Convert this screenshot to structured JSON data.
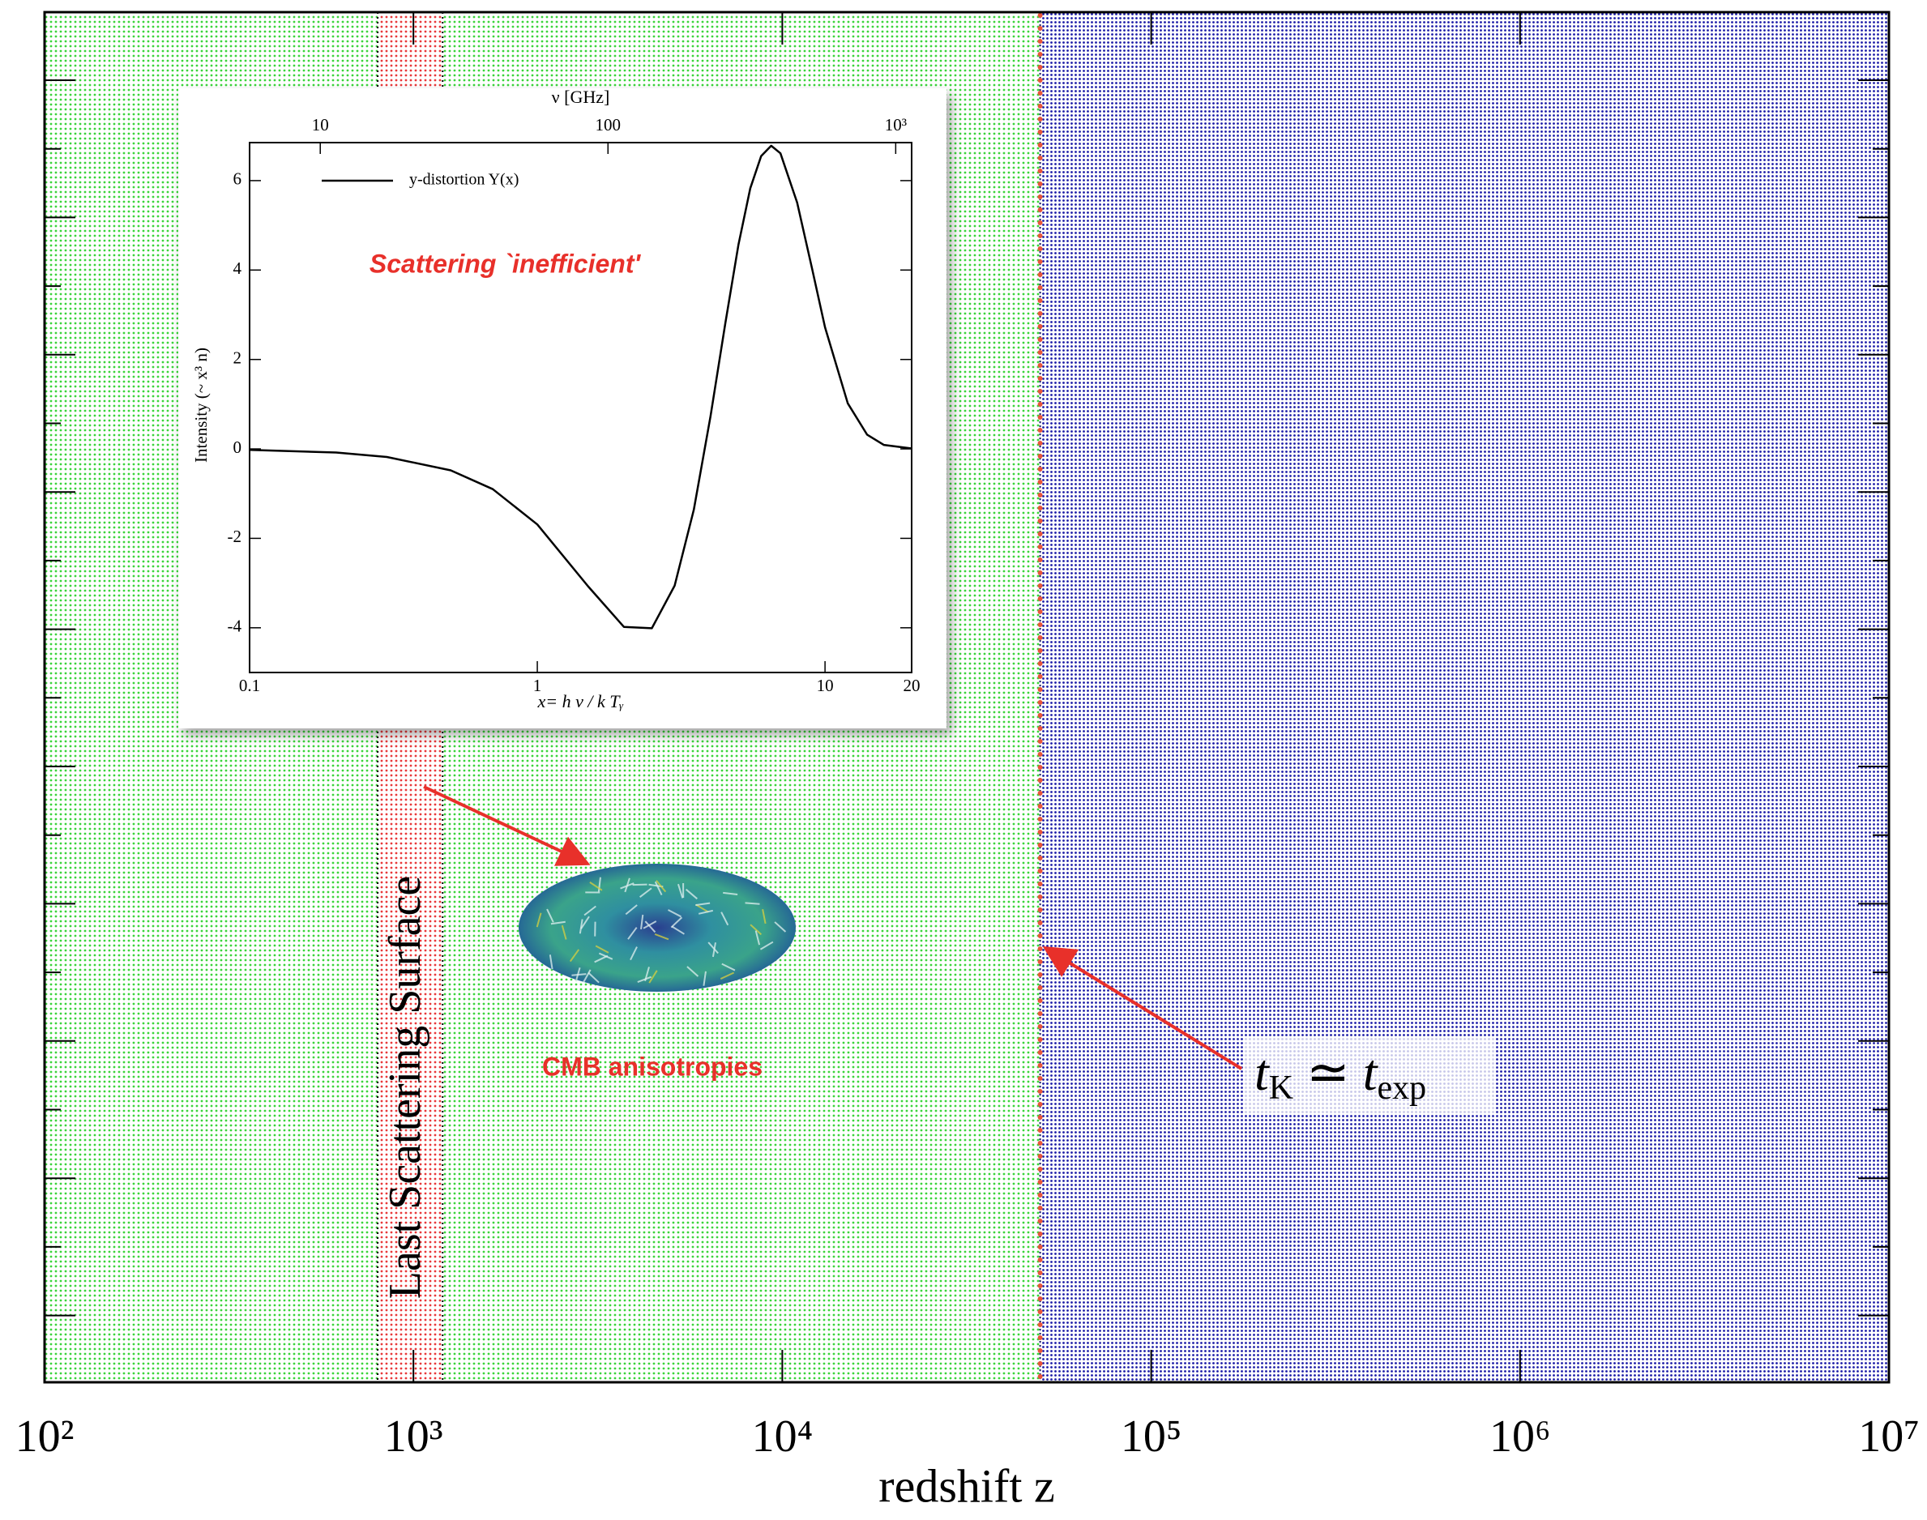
{
  "chart_data": [
    {
      "type": "regions",
      "xlabel": "redshift z",
      "xscale": "log",
      "xlim": [
        100,
        10000000
      ],
      "xticks": [
        {
          "value": 100,
          "label": "10²"
        },
        {
          "value": 1000,
          "label": "10³"
        },
        {
          "value": 10000,
          "label": "10⁴"
        },
        {
          "value": 100000,
          "label": "10⁵"
        },
        {
          "value": 1000000,
          "label": "10⁶"
        },
        {
          "value": 10000000,
          "label": "10⁷"
        }
      ],
      "regions": [
        {
          "x": [
            100,
            50000
          ],
          "color": "#3ad43a"
        },
        {
          "x": [
            50000,
            10000000
          ],
          "color": "#1c1ca8"
        },
        {
          "x": [
            800,
            1200
          ],
          "color": "#e8383a"
        }
      ],
      "vlines": [
        {
          "x": 50000,
          "color": "#e8553a"
        }
      ],
      "annotations": [
        {
          "text": "Last Scattering Surface"
        },
        {
          "text": "CMB anisotropies"
        },
        {
          "parts": [
            "t",
            "K",
            " ≃ ",
            "t",
            "exp"
          ]
        }
      ]
    },
    {
      "type": "line",
      "x2label": "ν  [GHz]",
      "xlabel": "x= h ν / k Tᵧ",
      "ylabel": "Intensity (~ x³ n)",
      "xscale": "log",
      "xlim": [
        0.1,
        20
      ],
      "xticks": [
        0.1,
        1,
        10,
        20
      ],
      "x2lim": [
        5.68,
        1136
      ],
      "x2ticks": [
        10,
        100,
        {
          "value": 1000,
          "label": "10³"
        }
      ],
      "ylim": [
        -5,
        6.85
      ],
      "yticks": [
        -4,
        -2,
        0,
        2,
        4,
        6
      ],
      "annotation": "Scattering `inefficient'",
      "x": [
        0.1,
        0.2,
        0.3,
        0.5,
        0.7,
        1,
        1.5,
        2,
        2.5,
        3,
        3.5,
        4,
        4.5,
        5,
        5.5,
        6,
        6.5,
        7,
        8,
        9,
        10,
        12,
        14,
        16,
        20
      ],
      "series": [
        {
          "name": "y-distortion Y(x)",
          "color": "#000000",
          "values": [
            -0.02,
            -0.08,
            -0.18,
            -0.48,
            -0.9,
            -1.69,
            -3.07,
            -3.98,
            -4.01,
            -3.06,
            -1.36,
            0.73,
            2.8,
            4.56,
            5.83,
            6.55,
            6.78,
            6.61,
            5.51,
            4.05,
            2.72,
            1.02,
            0.32,
            0.09,
            0.01
          ]
        }
      ]
    }
  ]
}
